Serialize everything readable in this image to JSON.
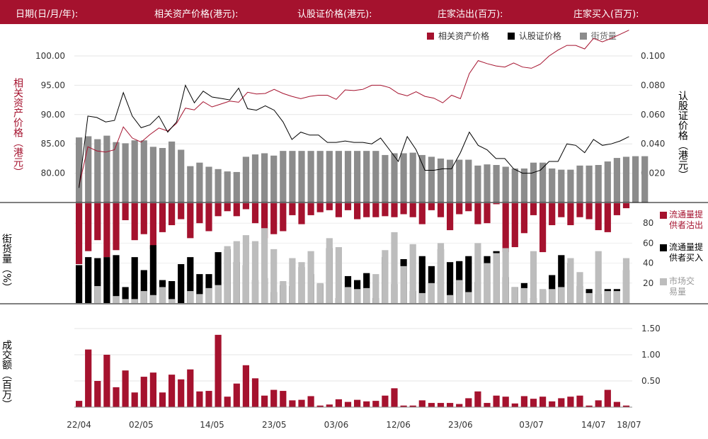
{
  "header": {
    "date_label": "日期(日/月/年):",
    "underlying_label": "相关资产价格(港元):",
    "warrant_label": "认股证价格(港元):",
    "sold_label": "庄家沽出(百万):",
    "bought_label": "庄家买入(百万):"
  },
  "legend_top": {
    "underlying": "相关资产价格",
    "warrant": "认股证价格",
    "outstanding": "街货量"
  },
  "left_axis_title": "相关资产价格（港元）",
  "right_axis_title": "认股证价格（港元）",
  "middle_axis_title": "街货量（%）",
  "bottom_axis_title": "成交额（百万）",
  "middle_legend": {
    "sold": "流通量提供者沽出",
    "bought": "流通量提供者买入",
    "market": "市场交易量"
  },
  "colors": {
    "header": "#a5122e",
    "underlying": "#a5122e",
    "warrant": "#000000",
    "outstanding": "#8c8c8c",
    "market": "#bdbdbd",
    "volume": "#a5122e"
  },
  "chart_data": [
    {
      "type": "line",
      "x": [
        "22/04",
        "23/04",
        "24/04",
        "25/04",
        "28/04",
        "29/04",
        "30/04",
        "02/05",
        "05/05",
        "06/05",
        "07/05",
        "08/05",
        "09/05",
        "12/05",
        "13/05",
        "14/05",
        "15/05",
        "16/05",
        "19/05",
        "20/05",
        "21/05",
        "22/05",
        "23/05",
        "26/05",
        "27/05",
        "28/05",
        "29/05",
        "30/05",
        "02/06",
        "03/06",
        "04/06",
        "05/06",
        "06/06",
        "09/06",
        "10/06",
        "11/06",
        "12/06",
        "13/06",
        "16/06",
        "17/06",
        "18/06",
        "19/06",
        "20/06",
        "23/06",
        "24/06",
        "25/06",
        "26/06",
        "27/06",
        "30/06",
        "01/07",
        "02/07",
        "03/07",
        "04/07",
        "07/07",
        "08/07",
        "09/07",
        "10/07",
        "11/07",
        "14/07",
        "15/07",
        "16/07",
        "17/07",
        "18/07"
      ],
      "xticks": [
        "22/04",
        "02/05",
        "14/05",
        "23/05",
        "03/06",
        "12/06",
        "23/06",
        "03/07",
        "14/07",
        "18/07"
      ],
      "series": [
        {
          "name": "相关资产价格",
          "axis": "left",
          "values": [
            77.8,
            84.5,
            83.8,
            83.6,
            84.0,
            87.9,
            86.0,
            85.3,
            86.6,
            87.7,
            87.2,
            88.5,
            91.1,
            90.8,
            92.2,
            91.3,
            91.8,
            92.3,
            92.1,
            93.8,
            93.5,
            93.6,
            94.3,
            93.6,
            93.1,
            92.7,
            93.1,
            93.3,
            93.3,
            92.6,
            94.2,
            94.1,
            94.3,
            95.0,
            95.0,
            94.6,
            93.6,
            93.2,
            93.9,
            93.1,
            92.8,
            92.0,
            93.3,
            92.7,
            97.0,
            99.2,
            98.7,
            98.3,
            98.1,
            98.8,
            98.1,
            97.9,
            98.6,
            100.0,
            101.0,
            101.8,
            101.8,
            101.2,
            103.0,
            102.4,
            103.0,
            103.7,
            104.4
          ]
        },
        {
          "name": "认股证价格",
          "axis": "right",
          "values": [
            0.01,
            0.059,
            0.058,
            0.055,
            0.056,
            0.075,
            0.059,
            0.051,
            0.053,
            0.059,
            0.048,
            0.055,
            0.08,
            0.068,
            0.076,
            0.072,
            0.071,
            0.07,
            0.078,
            0.064,
            0.063,
            0.066,
            0.063,
            0.055,
            0.043,
            0.048,
            0.046,
            0.046,
            0.041,
            0.041,
            0.042,
            0.041,
            0.041,
            0.04,
            0.044,
            0.036,
            0.028,
            0.045,
            0.036,
            0.022,
            0.022,
            0.023,
            0.023,
            0.034,
            0.048,
            0.039,
            0.036,
            0.03,
            0.03,
            0.023,
            0.02,
            0.02,
            0.022,
            0.028,
            0.028,
            0.04,
            0.039,
            0.034,
            0.043,
            0.039,
            0.04,
            0.042,
            0.045
          ]
        }
      ],
      "left_axis": {
        "ticks": [
          80.0,
          85.0,
          90.0,
          95.0,
          100.0
        ]
      },
      "right_axis": {
        "ticks": [
          0.02,
          0.04,
          0.06,
          0.08,
          0.1
        ]
      }
    },
    {
      "type": "bar",
      "name": "街货量",
      "values": [
        86.1,
        86.3,
        85.8,
        86.4,
        85.3,
        85.1,
        85.6,
        85.6,
        84.5,
        84.3,
        85.4,
        84.0,
        81.2,
        81.8,
        81.1,
        80.7,
        80.3,
        80.2,
        82.8,
        83.2,
        83.4,
        83.0,
        83.8,
        83.8,
        83.8,
        83.8,
        83.8,
        83.8,
        83.8,
        83.8,
        83.8,
        83.8,
        83.8,
        83.1,
        83.4,
        83.4,
        83.5,
        83.1,
        82.8,
        82.5,
        82.3,
        82.3,
        82.3,
        81.3,
        81.5,
        81.4,
        81.1,
        80.8,
        80.8,
        81.8,
        81.8,
        80.8,
        80.6,
        80.6,
        81.3,
        81.3,
        81.4,
        82.0,
        82.6,
        82.8,
        82.9,
        82.9
      ]
    },
    {
      "type": "bar",
      "stacked": true,
      "yticks": [
        20,
        40,
        60,
        80
      ],
      "series": [
        {
          "name": "流通量提供者沽出",
          "values": [
            61,
            48,
            37,
            54,
            47,
            17,
            37,
            31,
            46,
            29,
            22,
            16,
            35,
            20,
            28,
            13,
            8,
            13,
            6,
            20,
            35,
            31,
            28,
            12,
            21,
            12,
            9,
            7,
            14,
            7,
            16,
            14,
            14,
            13,
            14,
            11,
            14,
            21,
            7,
            14,
            27,
            11,
            8,
            21,
            20,
            1,
            49,
            44,
            30,
            12,
            49,
            22,
            14,
            22,
            14,
            16,
            27,
            29,
            12,
            5
          ]
        },
        {
          "name": "流通量提供者买入",
          "values": [
            38,
            46,
            45,
            46,
            48,
            16,
            46,
            33,
            58,
            23,
            22,
            39,
            46,
            29,
            29,
            51,
            54,
            41,
            38,
            23,
            25,
            11,
            18,
            17,
            36,
            29,
            19,
            55,
            5,
            27,
            23,
            30,
            5,
            46,
            19,
            44,
            12,
            47,
            37,
            54,
            41,
            42,
            47,
            21,
            47,
            52,
            26,
            16,
            20,
            5,
            13,
            28,
            48,
            40,
            17,
            14,
            9,
            14,
            14,
            33
          ]
        },
        {
          "name": "市场交易量",
          "values": [
            0,
            0,
            17,
            0,
            7,
            4,
            4,
            12,
            8,
            16,
            4,
            0,
            12,
            9,
            15,
            18,
            57,
            62,
            68,
            62,
            75,
            54,
            22,
            45,
            41,
            52,
            20,
            65,
            56,
            16,
            14,
            15,
            29,
            53,
            71,
            37,
            59,
            10,
            20,
            60,
            8,
            23,
            11,
            60,
            40,
            50,
            55,
            16,
            15,
            52,
            14,
            14,
            16,
            45,
            31,
            10,
            52,
            12,
            12,
            45
          ]
        }
      ]
    },
    {
      "type": "bar",
      "name": "成交额",
      "yticks": [
        0.5,
        1.0,
        1.5
      ],
      "ytick_labels": [
        "0.50",
        "1.00",
        "1.50"
      ],
      "values": [
        0.12,
        1.1,
        0.5,
        1.0,
        0.38,
        0.7,
        0.28,
        0.58,
        0.66,
        0.28,
        0.62,
        0.53,
        0.72,
        0.3,
        0.31,
        1.38,
        0.2,
        0.45,
        0.8,
        0.55,
        0.22,
        0.33,
        0.31,
        0.13,
        0.14,
        0.21,
        0.03,
        0.05,
        0.15,
        0.1,
        0.14,
        0.11,
        0.12,
        0.22,
        0.36,
        0.03,
        0.03,
        0.13,
        0.08,
        0.08,
        0.08,
        0.06,
        0.17,
        0.3,
        0.08,
        0.22,
        0.2,
        0.07,
        0.21,
        0.16,
        0.2,
        0.11,
        0.17,
        0.2,
        0.22,
        0.03,
        0.13,
        0.33,
        0.1,
        0.03
      ]
    }
  ]
}
